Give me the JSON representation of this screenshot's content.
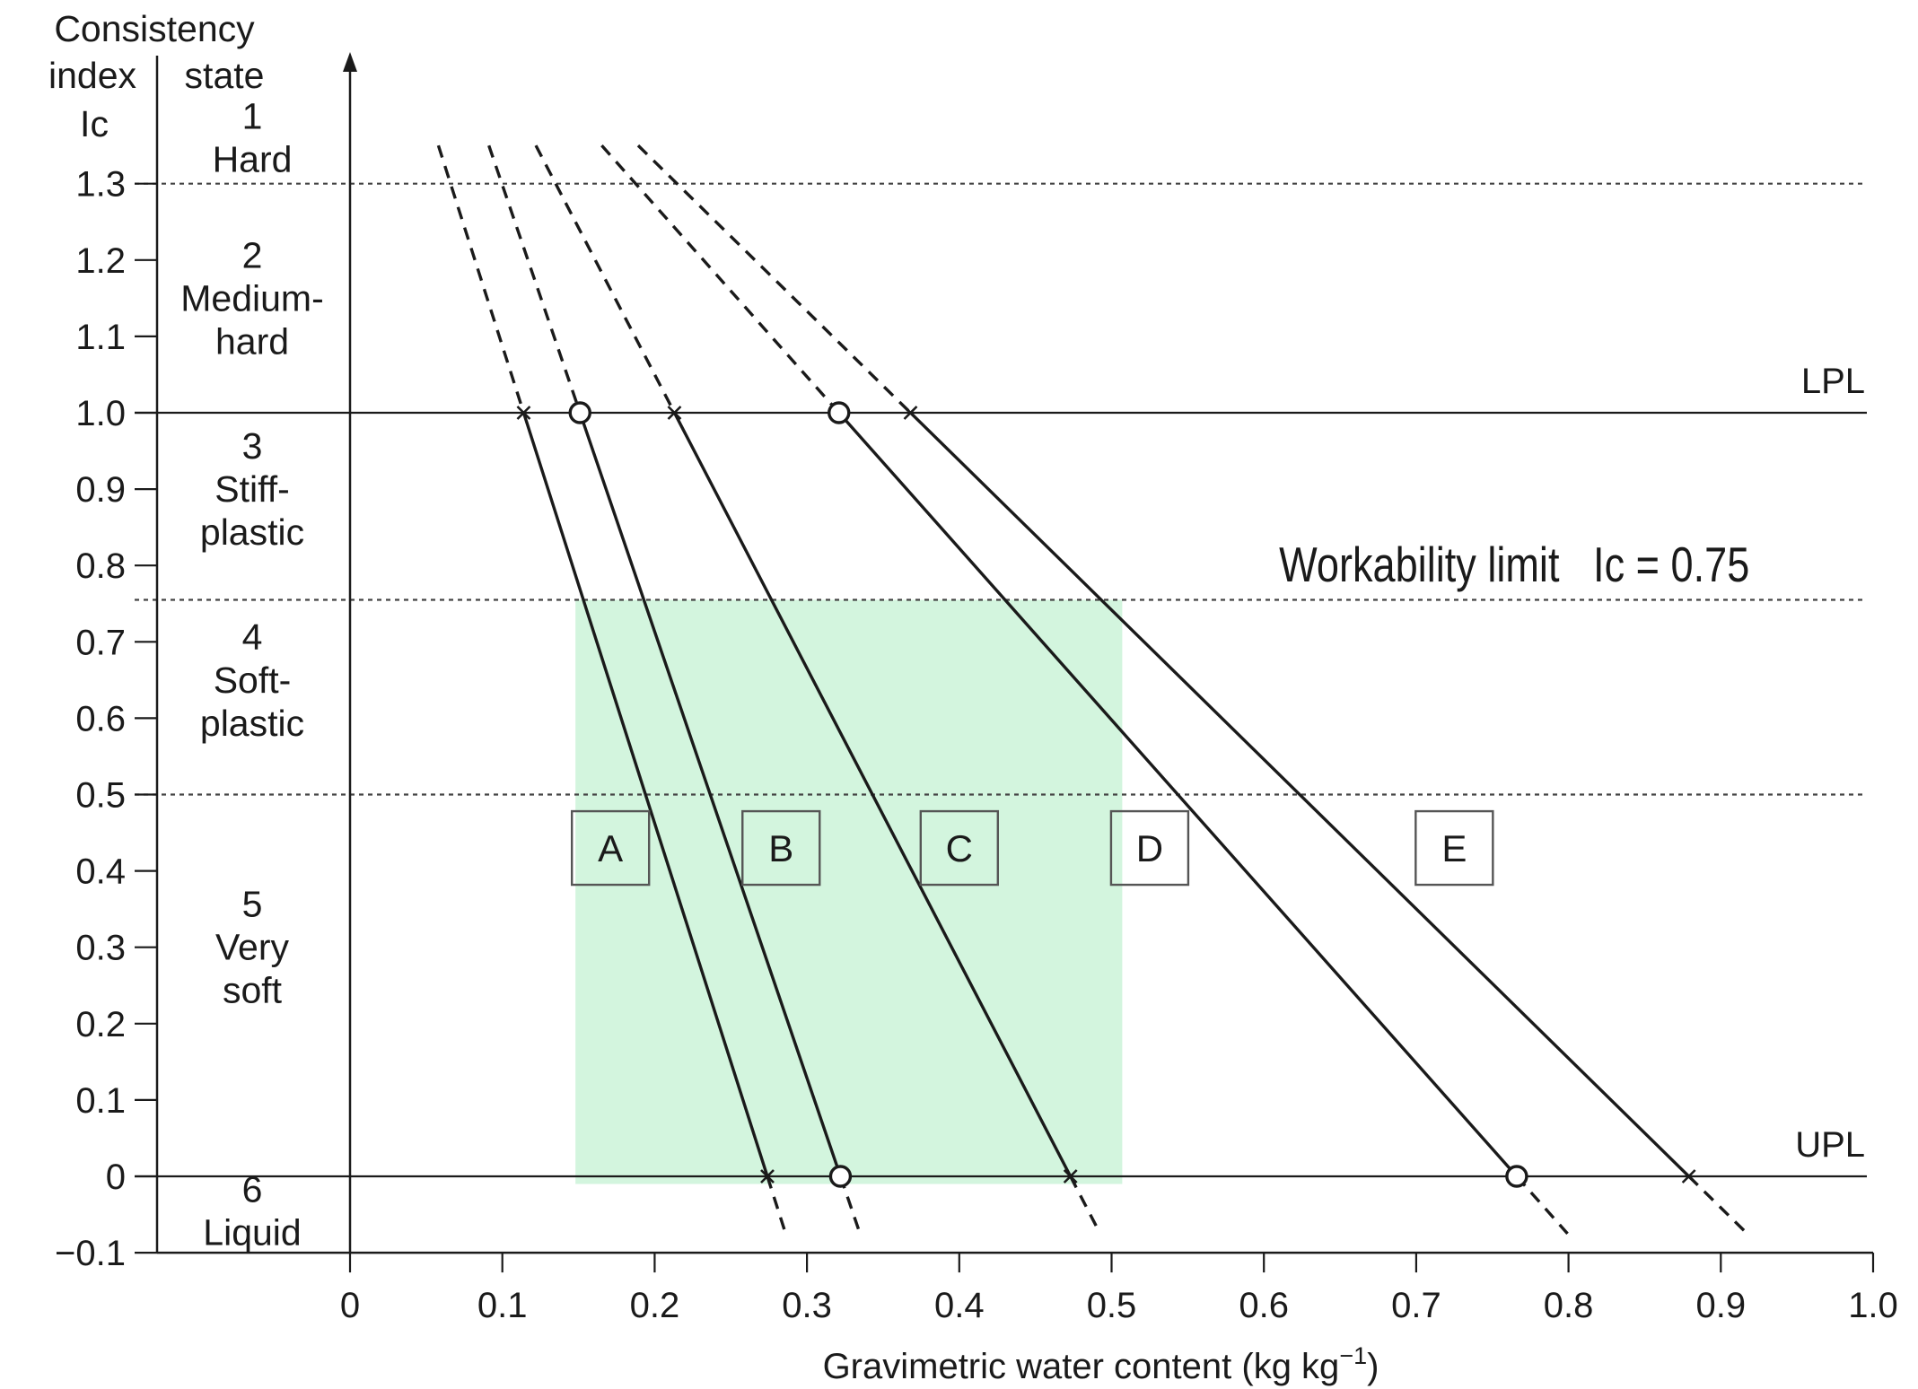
{
  "chart_data": {
    "type": "line",
    "header": {
      "left_lines": [
        "Consistency",
        "index",
        "Ic"
      ],
      "right_line": "state"
    },
    "xlabel": "Gravimetric water content (kg kg",
    "xlabel_sup": "−1",
    "xlabel_end": ")",
    "xlim": [
      0,
      1.0
    ],
    "ylim": [
      -0.1,
      1.35
    ],
    "x_ticks": [
      {
        "value": 0,
        "label": "0"
      },
      {
        "value": 0.1,
        "label": "0.1"
      },
      {
        "value": 0.2,
        "label": "0.2"
      },
      {
        "value": 0.3,
        "label": "0.3"
      },
      {
        "value": 0.4,
        "label": "0.4"
      },
      {
        "value": 0.5,
        "label": "0.5"
      },
      {
        "value": 0.6,
        "label": "0.6"
      },
      {
        "value": 0.7,
        "label": "0.7"
      },
      {
        "value": 0.8,
        "label": "0.8"
      },
      {
        "value": 0.9,
        "label": "0.9"
      },
      {
        "value": 1.0,
        "label": "1.0"
      }
    ],
    "y_ticks": [
      {
        "value": 1.3,
        "label": "1.3"
      },
      {
        "value": 1.2,
        "label": "1.2"
      },
      {
        "value": 1.1,
        "label": "1.1"
      },
      {
        "value": 1.0,
        "label": "1.0"
      },
      {
        "value": 0.9,
        "label": "0.9"
      },
      {
        "value": 0.8,
        "label": "0.8"
      },
      {
        "value": 0.7,
        "label": "0.7"
      },
      {
        "value": 0.6,
        "label": "0.6"
      },
      {
        "value": 0.5,
        "label": "0.5"
      },
      {
        "value": 0.4,
        "label": "0.4"
      },
      {
        "value": 0.3,
        "label": "0.3"
      },
      {
        "value": 0.2,
        "label": "0.2"
      },
      {
        "value": 0.1,
        "label": "0.1"
      },
      {
        "value": 0,
        "label": "0"
      },
      {
        "value": -0.1,
        "label": "−0.1"
      }
    ],
    "states": [
      {
        "lines": [
          "1",
          "Hard"
        ],
        "y_center": 1.36
      },
      {
        "lines": [
          "2",
          "Medium-",
          "hard"
        ],
        "y_center": 1.15
      },
      {
        "lines": [
          "3",
          "Stiff-",
          "plastic"
        ],
        "y_center": 0.9
      },
      {
        "lines": [
          "4",
          "Soft-",
          "plastic"
        ],
        "y_center": 0.65
      },
      {
        "lines": [
          "5",
          "Very",
          "soft"
        ],
        "y_center": 0.3
      },
      {
        "lines": [
          "6",
          "Liquid"
        ],
        "y_center": -0.045
      }
    ],
    "reference_lines": [
      {
        "y": 1.0,
        "style": "solid",
        "label": "LPL"
      },
      {
        "y": 0,
        "style": "solid",
        "label": "UPL"
      },
      {
        "y": 1.3,
        "style": "dotted",
        "label": ""
      },
      {
        "y": 0.755,
        "style": "dotted",
        "label": ""
      },
      {
        "y": 0.5,
        "style": "dotted",
        "label": ""
      }
    ],
    "annotation": {
      "text": "Workability limit   Ic = 0.75",
      "x": 0.61,
      "y": 0.8
    },
    "workability_region": {
      "x_range": [
        0.148,
        0.507
      ],
      "y_range": [
        -0.01,
        0.755
      ],
      "color": "#d3f5de"
    },
    "series": [
      {
        "label": "A",
        "lpl_water_content": 0.114,
        "upl_water_content": 0.274,
        "marker": "x",
        "label_x": 0.171
      },
      {
        "label": "B",
        "lpl_water_content": 0.151,
        "upl_water_content": 0.322,
        "marker": "o",
        "label_x": 0.283
      },
      {
        "label": "C",
        "lpl_water_content": 0.213,
        "upl_water_content": 0.473,
        "marker": "x",
        "label_x": 0.4
      },
      {
        "label": "D",
        "lpl_water_content": 0.321,
        "upl_water_content": 0.766,
        "marker": "o",
        "label_x": 0.525
      },
      {
        "label": "E",
        "lpl_water_content": 0.368,
        "upl_water_content": 0.879,
        "marker": "x",
        "label_x": 0.725
      }
    ],
    "series_box_y": 0.43,
    "extension_y_top": 1.35,
    "extension_y_bottom": -0.075,
    "colors": {
      "line": "#1a1a1a",
      "grid_dotted": "#444444",
      "region_fill": "#d3f5de",
      "box_border": "#555555"
    }
  }
}
